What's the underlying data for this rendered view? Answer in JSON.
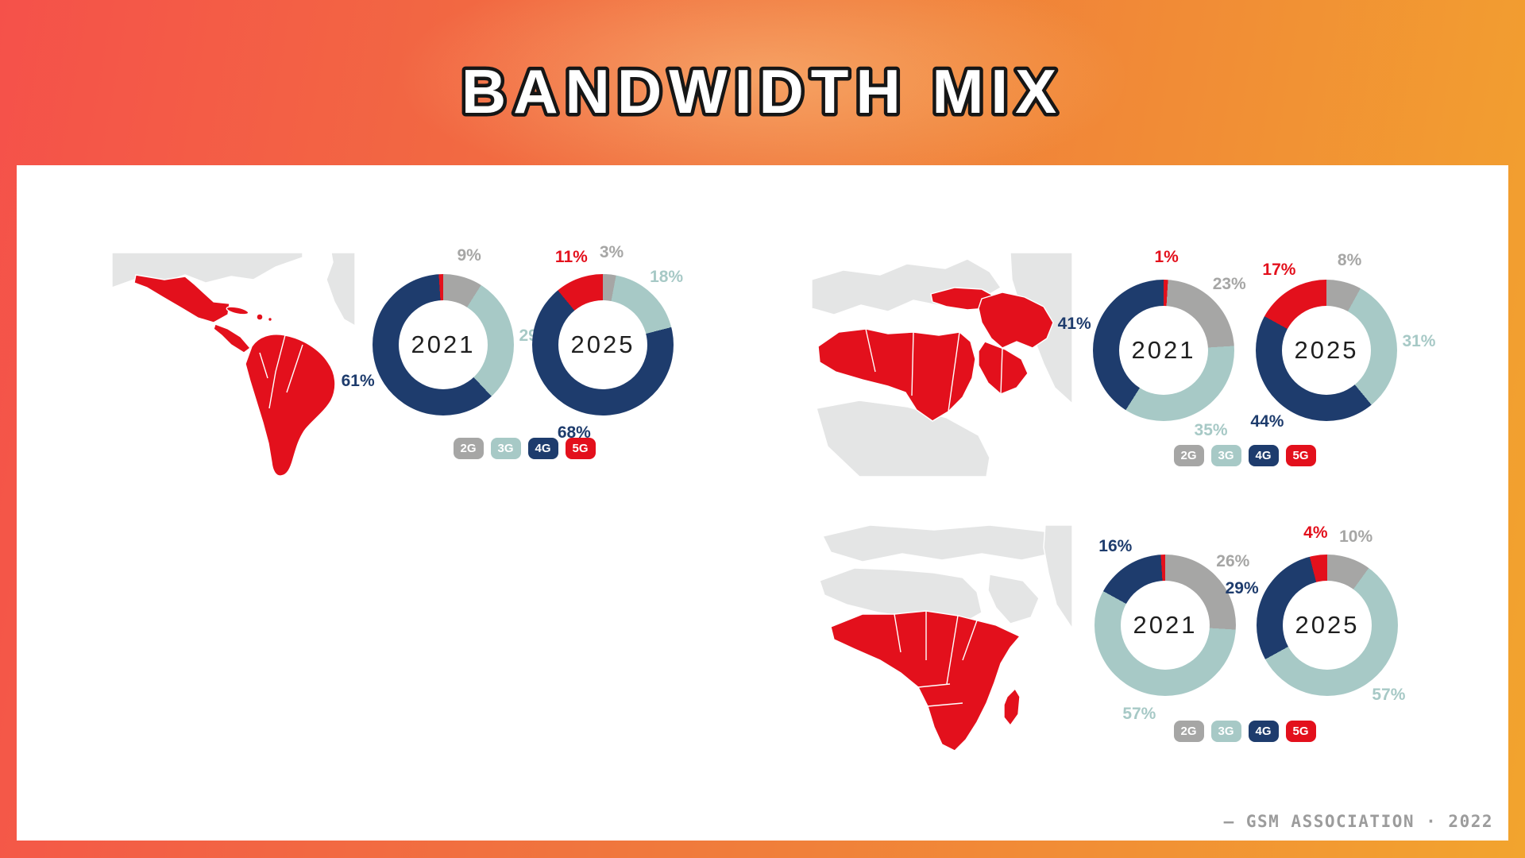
{
  "title": "BANDWIDTH MIX",
  "footer": "– GSM ASSOCIATION · 2022",
  "colors": {
    "2G": "#a6a6a5",
    "3G": "#a7c9c6",
    "4G": "#1e3c6d",
    "5G": "#e3101c",
    "map_base": "#e4e5e5",
    "map_red": "#e3101c",
    "accent_left": "#f5514a",
    "accent_right": "#f2a42e"
  },
  "legend_items": [
    "2G",
    "3G",
    "4G",
    "5G"
  ],
  "regions": [
    {
      "id": "latin-america"
    },
    {
      "id": "mena"
    },
    {
      "id": "sub-saharan-africa"
    }
  ],
  "chart_data": [
    {
      "type": "pie",
      "region": "latin-america",
      "title": "2021",
      "categories": [
        "2G",
        "3G",
        "4G",
        "5G"
      ],
      "values": [
        9,
        29,
        61,
        1
      ],
      "labels": [
        "9%",
        "29%",
        "61%",
        ""
      ]
    },
    {
      "type": "pie",
      "region": "latin-america",
      "title": "2025",
      "categories": [
        "2G",
        "3G",
        "4G",
        "5G"
      ],
      "values": [
        3,
        18,
        68,
        11
      ],
      "labels": [
        "3%",
        "18%",
        "68%",
        "11%"
      ]
    },
    {
      "type": "pie",
      "region": "mena",
      "title": "2021",
      "categories": [
        "5G",
        "2G",
        "3G",
        "4G"
      ],
      "values": [
        1,
        23,
        35,
        41
      ],
      "labels": [
        "1%",
        "23%",
        "35%",
        "41%"
      ]
    },
    {
      "type": "pie",
      "region": "mena",
      "title": "2025",
      "categories": [
        "2G",
        "3G",
        "4G",
        "5G"
      ],
      "values": [
        8,
        31,
        44,
        17
      ],
      "labels": [
        "8%",
        "31%",
        "44%",
        "17%"
      ]
    },
    {
      "type": "pie",
      "region": "sub-saharan-africa",
      "title": "2021",
      "categories": [
        "2G",
        "3G",
        "4G",
        "5G"
      ],
      "values": [
        26,
        57,
        16,
        1
      ],
      "labels": [
        "26%",
        "57%",
        "16%",
        ""
      ]
    },
    {
      "type": "pie",
      "region": "sub-saharan-africa",
      "title": "2025",
      "categories": [
        "2G",
        "3G",
        "4G",
        "5G"
      ],
      "values": [
        10,
        57,
        29,
        4
      ],
      "labels": [
        "10%",
        "57%",
        "29%",
        "4%"
      ]
    }
  ]
}
